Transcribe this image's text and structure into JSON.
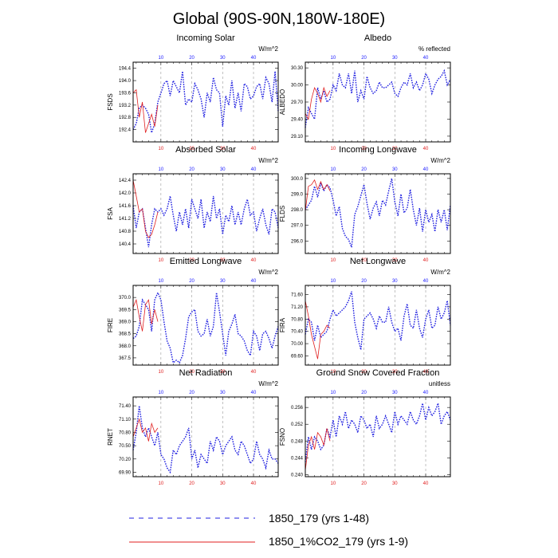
{
  "title": "Global (90S-90N,180W-180E)",
  "legend": [
    {
      "label": "1850_179 (yrs 1-48)",
      "color": "#1f1fe0",
      "dash": "6 6"
    },
    {
      "label": "1850_1%CO2_179 (yrs 1-9)",
      "color": "#e01f1f",
      "dash": ""
    }
  ],
  "chart_data": [
    {
      "type": "line",
      "title": "Incoming Solar",
      "ylabel": "FSDS",
      "units": "W/m^2",
      "xlim": [
        1,
        48
      ],
      "ylim": [
        192.0,
        194.6
      ],
      "xticks": [
        10,
        20,
        30,
        40
      ],
      "yticks": [
        192.4,
        192.8,
        193.2,
        193.6,
        194.0,
        194.4
      ],
      "ytick_labels": [
        "192.4",
        "192.8",
        "193.2",
        "193.6",
        "194.0",
        "194.4"
      ],
      "series": [
        {
          "values": [
            192.4,
            192.6,
            193.1,
            193.2,
            193.1,
            192.9,
            192.3,
            192.6,
            193.3,
            193.6,
            193.9,
            194.0,
            193.5,
            194.0,
            193.8,
            193.6,
            194.3,
            193.2,
            193.4,
            193.3,
            193.9,
            193.7,
            193.4,
            192.8,
            193.6,
            193.3,
            194.1,
            193.7,
            193.6,
            192.5,
            193.5,
            193.2,
            194.0,
            193.1,
            193.6,
            193.0,
            193.9,
            193.8,
            193.4,
            193.5,
            193.8,
            193.9,
            193.4,
            194.1,
            193.9,
            193.3,
            194.3,
            193.0
          ]
        },
        {
          "values": [
            193.6,
            193.7,
            192.8,
            193.3,
            192.3,
            192.6,
            192.9,
            192.5,
            193.2
          ]
        }
      ]
    },
    {
      "type": "line",
      "title": "Albedo",
      "ylabel": "ALBEDO",
      "units": "% reflected",
      "xlim": [
        1,
        48
      ],
      "ylim": [
        29.0,
        30.4
      ],
      "xticks": [
        10,
        20,
        30,
        40
      ],
      "yticks": [
        29.1,
        29.4,
        29.7,
        30.0,
        30.3
      ],
      "ytick_labels": [
        "29.10",
        "29.40",
        "29.70",
        "30.00",
        "30.30"
      ],
      "series": [
        {
          "values": [
            29.25,
            29.6,
            29.5,
            29.4,
            29.95,
            29.75,
            29.9,
            29.7,
            29.75,
            30.0,
            29.9,
            30.2,
            30.0,
            29.95,
            30.2,
            29.85,
            30.25,
            29.7,
            29.9,
            29.75,
            30.15,
            29.95,
            29.85,
            29.9,
            30.05,
            29.95,
            29.95,
            30.0,
            30.05,
            29.85,
            29.8,
            29.95,
            30.05,
            30.0,
            30.2,
            29.95,
            30.05,
            29.9,
            30.0,
            30.2,
            30.1,
            29.85,
            30.0,
            30.1,
            30.15,
            30.25,
            30.0,
            30.1
          ]
        },
        {
          "values": [
            29.5,
            29.4,
            29.75,
            29.95,
            29.85,
            29.7,
            29.95,
            29.8,
            29.9
          ]
        }
      ]
    },
    {
      "type": "line",
      "title": "Absorbed Solar",
      "ylabel": "FSA",
      "units": "W/m^2",
      "xlim": [
        1,
        48
      ],
      "ylim": [
        140.1,
        142.6
      ],
      "xticks": [
        10,
        20,
        30,
        40
      ],
      "yticks": [
        140.4,
        140.8,
        141.2,
        141.6,
        142.0,
        142.4
      ],
      "ytick_labels": [
        "140.4",
        "140.8",
        "141.2",
        "141.6",
        "142.0",
        "142.4"
      ],
      "series": [
        {
          "values": [
            141.6,
            140.9,
            141.4,
            141.5,
            140.9,
            140.3,
            141.0,
            141.5,
            141.4,
            141.5,
            141.3,
            141.5,
            141.9,
            141.3,
            140.8,
            141.4,
            141.0,
            141.5,
            140.9,
            141.8,
            141.5,
            141.2,
            141.8,
            140.9,
            141.4,
            141.1,
            141.9,
            141.2,
            141.5,
            140.7,
            141.3,
            141.1,
            141.6,
            141.0,
            141.4,
            141.0,
            141.5,
            141.8,
            141.3,
            141.4,
            140.8,
            141.2,
            141.5,
            141.0,
            140.7,
            141.5,
            141.4,
            140.9
          ]
        },
        {
          "values": [
            142.4,
            141.9,
            141.4,
            141.5,
            140.8,
            140.6,
            140.7,
            141.0,
            141.4
          ]
        }
      ]
    },
    {
      "type": "line",
      "title": "Incoming Longwave",
      "ylabel": "FLDS",
      "units": "W/m^2",
      "xlim": [
        1,
        48
      ],
      "ylim": [
        295.2,
        300.3
      ],
      "xticks": [
        10,
        20,
        30,
        40
      ],
      "yticks": [
        296.0,
        297.0,
        298.0,
        299.0,
        300.0
      ],
      "ytick_labels": [
        "296.0",
        "297.0",
        "298.0",
        "299.0",
        "300.0"
      ],
      "series": [
        {
          "values": [
            298.0,
            298.3,
            298.6,
            299.5,
            298.8,
            299.7,
            299.2,
            299.6,
            299.4,
            298.6,
            297.6,
            298.2,
            296.8,
            296.3,
            296.1,
            295.6,
            297.7,
            298.2,
            298.9,
            299.6,
            298.4,
            297.4,
            298.1,
            298.5,
            297.6,
            298.6,
            298.3,
            299.2,
            300.0,
            298.5,
            297.6,
            299.0,
            297.8,
            298.1,
            299.3,
            298.0,
            297.0,
            298.1,
            296.6,
            298.0,
            297.2,
            297.7,
            296.6,
            298.0,
            297.2,
            298.0,
            296.7,
            298.3
          ]
        },
        {
          "values": [
            297.9,
            299.5,
            299.6,
            299.9,
            299.3,
            299.8,
            299.3,
            299.6,
            299.2
          ]
        }
      ]
    },
    {
      "type": "line",
      "title": "Emitted Longwave",
      "ylabel": "FIRE",
      "units": "W/m^2",
      "xlim": [
        1,
        48
      ],
      "ylim": [
        367.2,
        370.5
      ],
      "xticks": [
        10,
        20,
        30,
        40
      ],
      "yticks": [
        367.5,
        368.0,
        368.5,
        369.0,
        369.5,
        370.0
      ],
      "ytick_labels": [
        "367.5",
        "368.0",
        "368.5",
        "369.0",
        "369.5",
        "370.0"
      ],
      "series": [
        {
          "values": [
            368.3,
            368.4,
            368.8,
            369.9,
            369.7,
            369.5,
            368.6,
            369.9,
            370.2,
            369.9,
            369.0,
            368.2,
            367.9,
            367.3,
            367.4,
            367.3,
            367.6,
            368.3,
            369.2,
            369.4,
            369.5,
            368.6,
            368.4,
            368.5,
            369.1,
            368.4,
            368.8,
            370.2,
            369.4,
            368.5,
            367.6,
            368.6,
            368.9,
            369.3,
            368.5,
            368.4,
            368.2,
            367.8,
            367.6,
            368.6,
            368.4,
            367.8,
            368.5,
            368.6,
            368.3,
            367.9,
            368.4,
            368.8
          ]
        },
        {
          "values": [
            369.6,
            369.9,
            369.2,
            368.6,
            369.7,
            369.9,
            368.9,
            369.5,
            369.0
          ]
        }
      ]
    },
    {
      "type": "line",
      "title": "Net Longwave",
      "ylabel": "FIRA",
      "units": "W/m^2",
      "xlim": [
        1,
        48
      ],
      "ylim": [
        69.3,
        71.9
      ],
      "xticks": [
        10,
        20,
        30,
        40
      ],
      "yticks": [
        69.6,
        70.0,
        70.4,
        70.8,
        71.2,
        71.6
      ],
      "ytick_labels": [
        "69.60",
        "70.00",
        "70.40",
        "70.80",
        "71.20",
        "71.60"
      ],
      "series": [
        {
          "values": [
            70.3,
            70.8,
            70.7,
            70.1,
            70.6,
            70.2,
            70.3,
            70.4,
            70.8,
            71.1,
            70.9,
            71.0,
            71.1,
            71.2,
            71.4,
            71.7,
            70.7,
            70.2,
            69.8,
            70.8,
            70.9,
            71.0,
            70.8,
            70.5,
            70.9,
            70.7,
            70.7,
            71.2,
            70.7,
            70.4,
            70.5,
            70.1,
            70.9,
            71.3,
            70.6,
            70.5,
            71.1,
            70.5,
            70.2,
            70.8,
            71.1,
            70.5,
            70.6,
            71.2,
            70.8,
            71.0,
            71.4,
            70.6
          ]
        },
        {
          "values": [
            71.4,
            70.9,
            70.3,
            69.9,
            69.5,
            70.3,
            70.4,
            70.6,
            70.5
          ]
        }
      ]
    },
    {
      "type": "line",
      "title": "Net Radiation",
      "ylabel": "RNET",
      "units": "W/m^2",
      "xlim": [
        1,
        48
      ],
      "ylim": [
        69.8,
        71.6
      ],
      "xticks": [
        10,
        20,
        30,
        40
      ],
      "yticks": [
        69.9,
        70.2,
        70.5,
        70.8,
        71.1,
        71.4
      ],
      "ytick_labels": [
        "69.90",
        "70.20",
        "70.50",
        "70.80",
        "71.10",
        "71.40"
      ],
      "series": [
        {
          "values": [
            70.4,
            70.8,
            71.4,
            70.9,
            70.7,
            70.9,
            70.7,
            70.5,
            70.8,
            70.3,
            70.2,
            70.0,
            69.9,
            70.4,
            70.3,
            70.5,
            70.6,
            70.7,
            70.9,
            70.2,
            70.4,
            70.0,
            70.3,
            70.2,
            70.1,
            70.6,
            70.4,
            70.7,
            70.6,
            70.3,
            70.5,
            70.6,
            70.7,
            70.4,
            70.3,
            70.6,
            70.5,
            70.3,
            70.1,
            70.2,
            70.6,
            70.3,
            70.2,
            70.0,
            70.4,
            70.2,
            70.2,
            70.1
          ]
        },
        {
          "values": [
            70.7,
            70.9,
            71.1,
            70.8,
            70.9,
            70.6,
            71.0,
            70.8,
            70.9
          ]
        }
      ]
    },
    {
      "type": "line",
      "title": "Ground Snow Covered Fraction",
      "ylabel": "FSNO",
      "units": "unitless",
      "xlim": [
        1,
        48
      ],
      "ylim": [
        0.2395,
        0.2585
      ],
      "xticks": [
        10,
        20,
        30,
        40
      ],
      "yticks": [
        0.24,
        0.244,
        0.248,
        0.252,
        0.256
      ],
      "ytick_labels": [
        "0.240",
        "0.244",
        "0.248",
        "0.252",
        "0.256"
      ],
      "series": [
        {
          "values": [
            0.243,
            0.249,
            0.246,
            0.249,
            0.248,
            0.246,
            0.247,
            0.251,
            0.249,
            0.253,
            0.249,
            0.254,
            0.252,
            0.255,
            0.251,
            0.253,
            0.252,
            0.25,
            0.254,
            0.253,
            0.251,
            0.252,
            0.249,
            0.254,
            0.251,
            0.252,
            0.254,
            0.252,
            0.25,
            0.255,
            0.252,
            0.254,
            0.253,
            0.252,
            0.255,
            0.253,
            0.252,
            0.254,
            0.257,
            0.253,
            0.256,
            0.254,
            0.255,
            0.257,
            0.252,
            0.254,
            0.255,
            0.253
          ]
        },
        {
          "values": [
            0.241,
            0.247,
            0.249,
            0.246,
            0.25,
            0.249,
            0.247,
            0.251,
            0.248
          ]
        }
      ]
    }
  ]
}
